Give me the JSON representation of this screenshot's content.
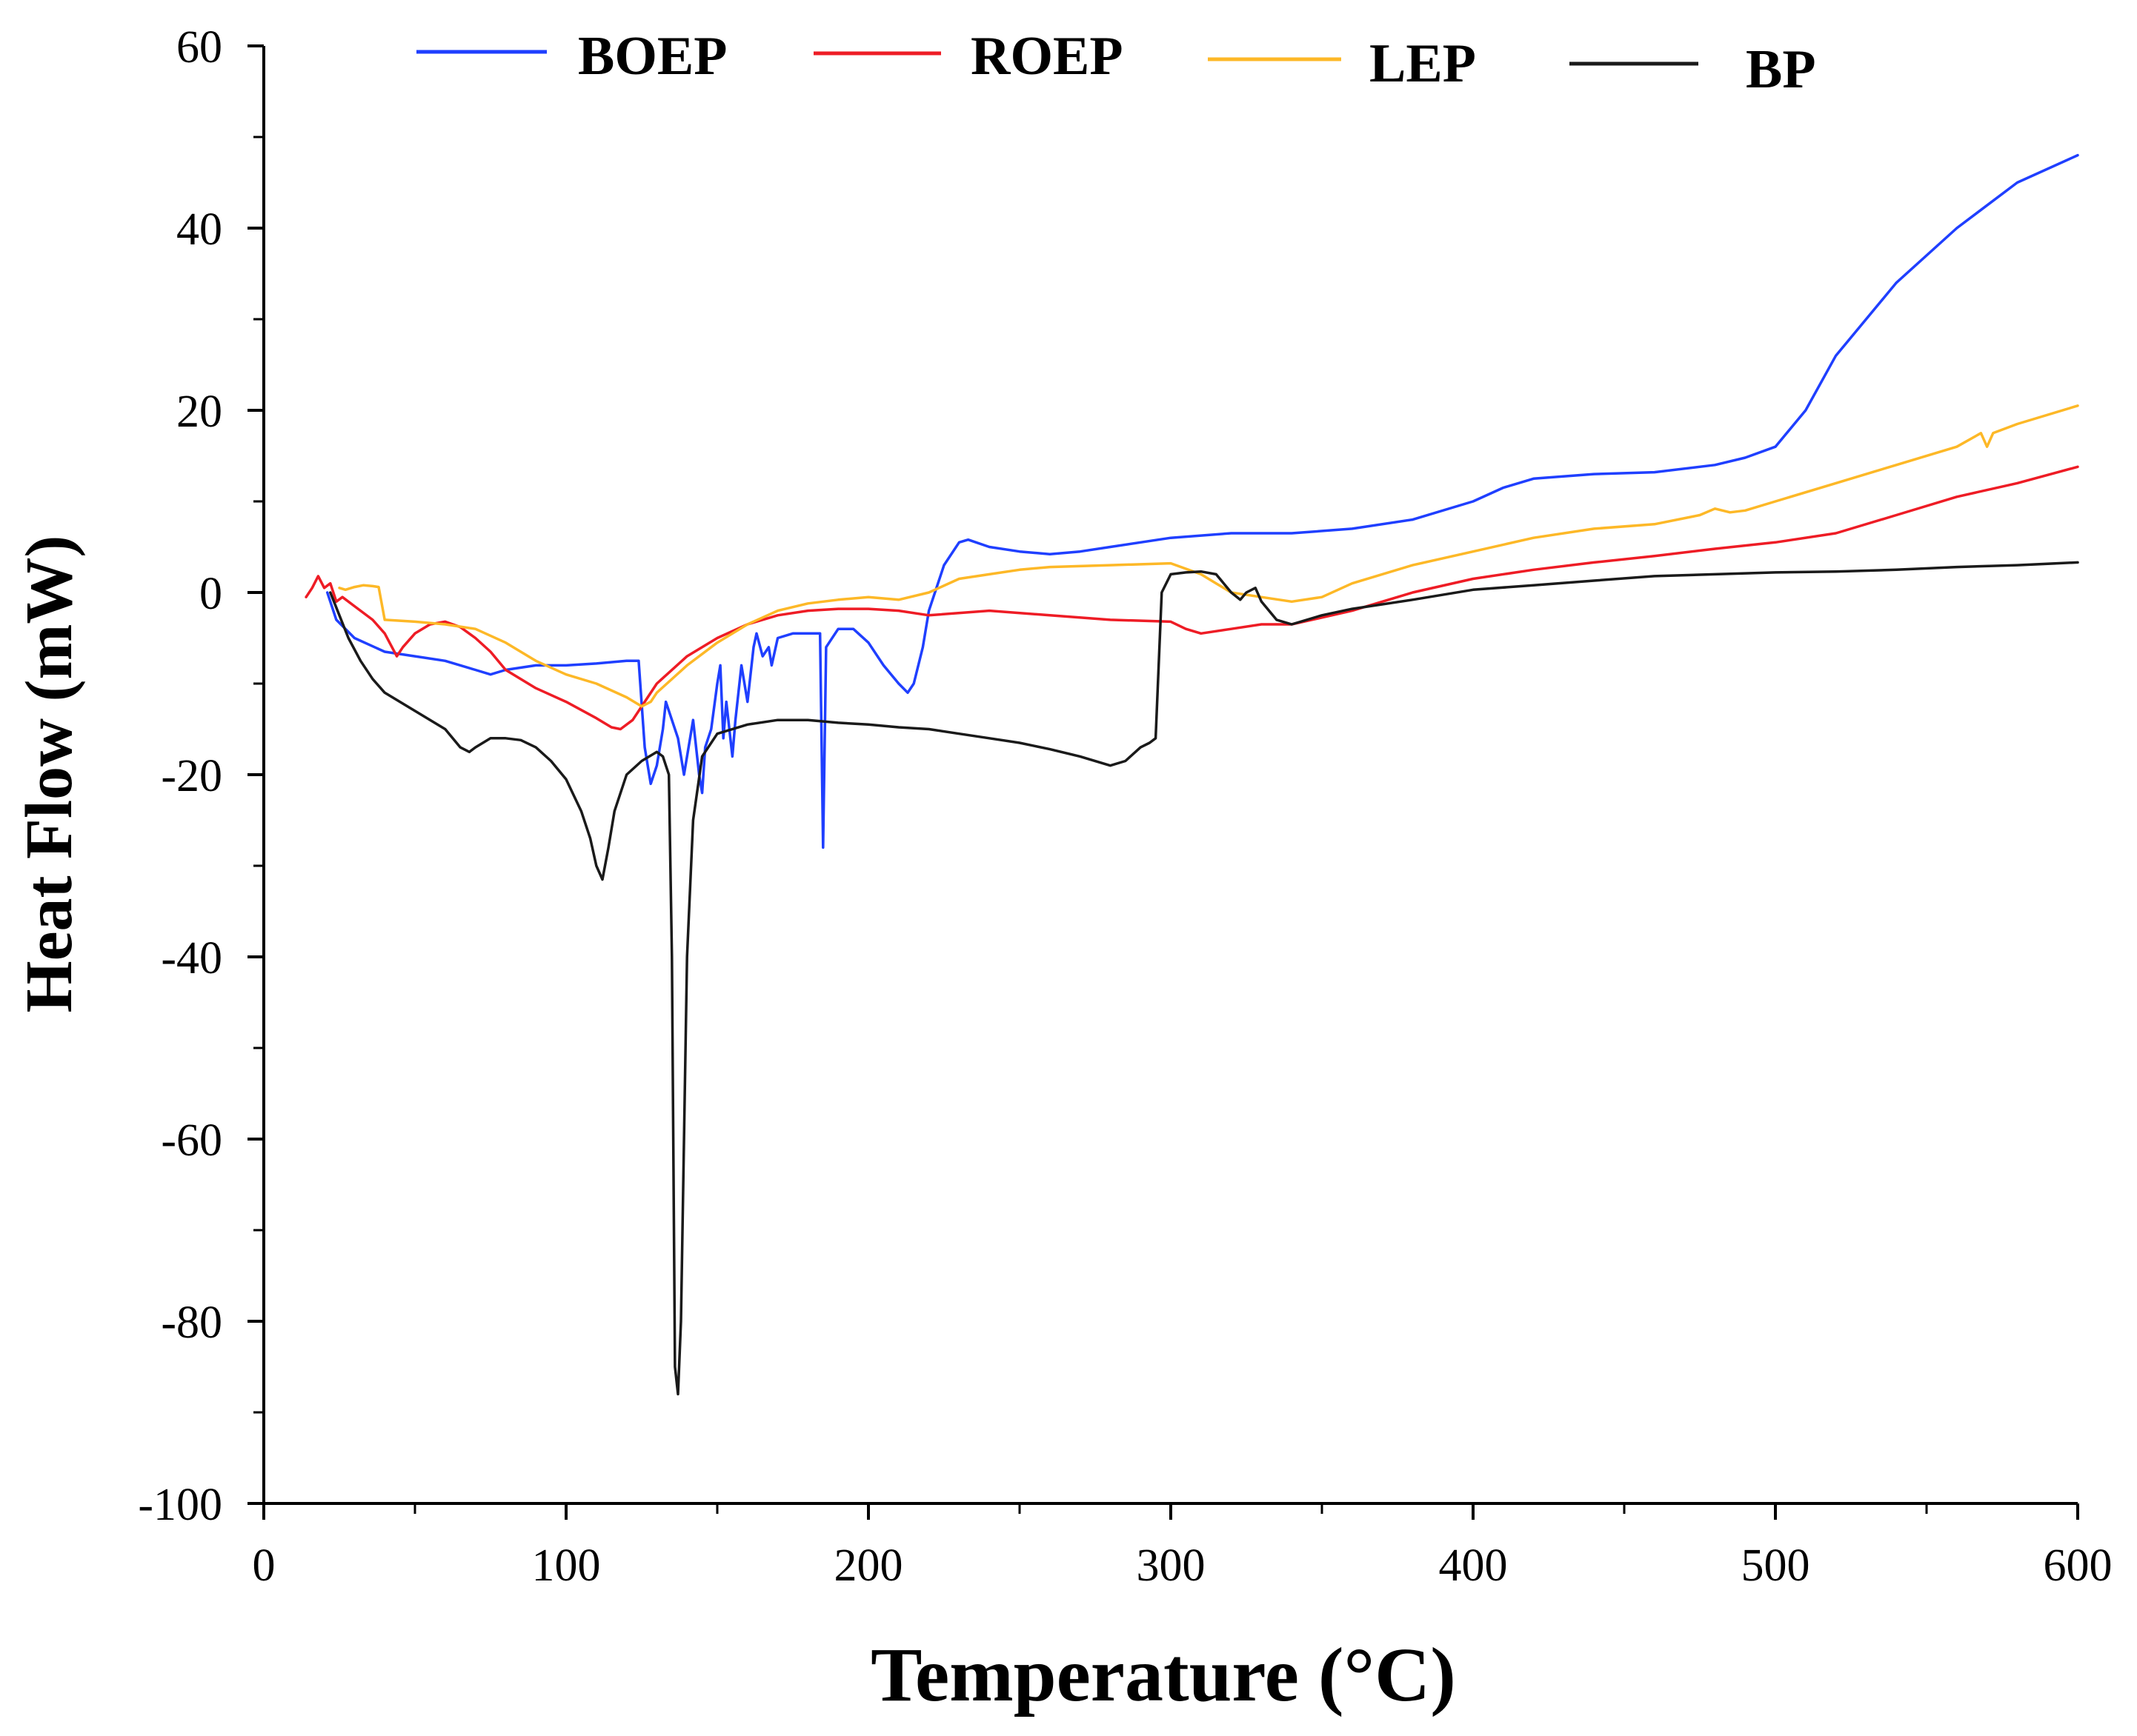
{
  "chart_data": {
    "type": "line",
    "title": "",
    "xlabel": "Temperature (°C)",
    "ylabel": "Heat Flow (mW)",
    "xlim": [
      0,
      600
    ],
    "ylim": [
      -100,
      60
    ],
    "xticks": [
      0,
      100,
      200,
      300,
      400,
      500,
      600
    ],
    "yticks": [
      60,
      40,
      20,
      0,
      -20,
      -40,
      -60,
      -80,
      -100
    ],
    "x_tick_labels": [
      "0",
      "100",
      "200",
      "300",
      "400",
      "500",
      "600"
    ],
    "y_tick_labels": [
      "60",
      "40",
      "20",
      "0",
      "-20",
      "-40",
      "-60",
      "-80",
      "-100"
    ],
    "grid": false,
    "legend_position": "top",
    "series": [
      {
        "name": "BOEP",
        "color": "#1f3fff",
        "x": [
          21,
          24,
          30,
          40,
          50,
          60,
          70,
          75,
          80,
          90,
          100,
          110,
          120,
          124,
          126,
          128,
          130,
          132,
          133,
          135,
          137,
          139,
          140,
          142,
          144,
          145,
          146,
          148,
          150,
          151,
          152,
          153,
          155,
          156,
          158,
          160,
          162,
          163,
          165,
          167,
          168,
          170,
          175,
          180,
          184,
          185,
          186,
          190,
          195,
          200,
          205,
          210,
          213,
          215,
          218,
          220,
          225,
          230,
          233,
          240,
          250,
          260,
          270,
          280,
          300,
          320,
          340,
          360,
          380,
          400,
          410,
          420,
          440,
          460,
          480,
          490,
          500,
          510,
          520,
          540,
          560,
          580,
          600
        ],
        "values": [
          0,
          -3,
          -5,
          -6.5,
          -7,
          -7.5,
          -8.5,
          -9,
          -8.5,
          -8,
          -8,
          -7.8,
          -7.5,
          -7.5,
          -17,
          -21,
          -19,
          -15,
          -12,
          -14,
          -16,
          -20,
          -18,
          -14,
          -20,
          -22,
          -17,
          -15,
          -10,
          -8,
          -16,
          -12,
          -18,
          -14,
          -8,
          -12,
          -6,
          -4.5,
          -7,
          -6,
          -8,
          -5,
          -4.5,
          -4.5,
          -4.5,
          -28,
          -6,
          -4,
          -4,
          -5.5,
          -8,
          -10,
          -11,
          -10,
          -6,
          -2,
          3,
          5.5,
          5.8,
          5,
          4.5,
          4.2,
          4.5,
          5,
          6,
          6.5,
          6.5,
          7,
          8,
          10,
          11.5,
          12.5,
          13,
          13.2,
          14,
          14.8,
          16,
          20,
          26,
          34,
          40,
          45,
          48
        ]
      },
      {
        "name": "ROEP",
        "color": "#ee1c25",
        "x": [
          14,
          16,
          18,
          20,
          22,
          24,
          26,
          30,
          36,
          40,
          44,
          46,
          50,
          55,
          60,
          65,
          70,
          75,
          80,
          90,
          100,
          110,
          115,
          118,
          122,
          126,
          130,
          140,
          150,
          160,
          170,
          180,
          190,
          200,
          210,
          220,
          240,
          260,
          280,
          300,
          305,
          310,
          320,
          330,
          340,
          360,
          380,
          400,
          420,
          440,
          460,
          480,
          500,
          520,
          540,
          560,
          580,
          600
        ],
        "values": [
          -0.5,
          0.5,
          1.8,
          0.5,
          1,
          -1,
          -0.5,
          -1.5,
          -3,
          -4.5,
          -7,
          -6,
          -4.5,
          -3.5,
          -3.2,
          -3.8,
          -5,
          -6.5,
          -8.5,
          -10.5,
          -12,
          -13.8,
          -14.8,
          -15,
          -14,
          -12,
          -10,
          -7,
          -5,
          -3.5,
          -2.5,
          -2,
          -1.8,
          -1.8,
          -2,
          -2.5,
          -2,
          -2.5,
          -3,
          -3.2,
          -4,
          -4.5,
          -4,
          -3.5,
          -3.5,
          -2,
          0,
          1.5,
          2.5,
          3.3,
          4,
          4.8,
          5.5,
          6.5,
          8.5,
          10.5,
          12,
          13.8
        ]
      },
      {
        "name": "LEP",
        "color": "#fdb827",
        "x": [
          25,
          27,
          30,
          33,
          36,
          38,
          40,
          50,
          60,
          70,
          80,
          90,
          100,
          110,
          120,
          125,
          128,
          130,
          140,
          150,
          160,
          170,
          180,
          190,
          200,
          210,
          220,
          230,
          240,
          250,
          260,
          280,
          300,
          310,
          315,
          320,
          330,
          340,
          350,
          360,
          380,
          400,
          420,
          440,
          460,
          475,
          480,
          485,
          490,
          500,
          520,
          540,
          560,
          568,
          570,
          572,
          580,
          600
        ],
        "values": [
          0.5,
          0.3,
          0.6,
          0.8,
          0.7,
          0.6,
          -3,
          -3.2,
          -3.5,
          -4,
          -5.5,
          -7.5,
          -9,
          -10,
          -11.5,
          -12.5,
          -12,
          -11,
          -8,
          -5.5,
          -3.5,
          -2,
          -1.2,
          -0.8,
          -0.5,
          -0.8,
          0,
          1.5,
          2,
          2.5,
          2.8,
          3,
          3.2,
          2,
          1,
          0,
          -0.5,
          -1,
          -0.5,
          1,
          3,
          4.5,
          6,
          7,
          7.5,
          8.5,
          9.2,
          8.8,
          9,
          10,
          12,
          14,
          16,
          17.5,
          16,
          17.5,
          18.5,
          20.5
        ]
      },
      {
        "name": "BP",
        "color": "#1a1a1a",
        "x": [
          22,
          25,
          28,
          32,
          36,
          40,
          50,
          60,
          65,
          68,
          70,
          75,
          80,
          85,
          90,
          95,
          100,
          105,
          108,
          110,
          112,
          114,
          116,
          120,
          125,
          130,
          132,
          134,
          135,
          136,
          137,
          138,
          139,
          140,
          142,
          145,
          150,
          160,
          170,
          180,
          190,
          200,
          210,
          220,
          230,
          240,
          250,
          260,
          270,
          280,
          285,
          290,
          293,
          295,
          297,
          300,
          305,
          310,
          315,
          320,
          323,
          325,
          328,
          330,
          335,
          340,
          350,
          360,
          380,
          400,
          420,
          440,
          460,
          480,
          500,
          520,
          540,
          560,
          580,
          600
        ],
        "values": [
          0,
          -2.5,
          -5,
          -7.5,
          -9.5,
          -11,
          -13,
          -15,
          -17,
          -17.5,
          -17,
          -16,
          -16,
          -16.2,
          -17,
          -18.5,
          -20.5,
          -24,
          -27,
          -30,
          -31.5,
          -28,
          -24,
          -20,
          -18.5,
          -17.5,
          -18,
          -20,
          -40,
          -85,
          -88,
          -80,
          -60,
          -40,
          -25,
          -18,
          -15.5,
          -14.5,
          -14,
          -14,
          -14.3,
          -14.5,
          -14.8,
          -15,
          -15.5,
          -16,
          -16.5,
          -17.2,
          -18,
          -19,
          -18.5,
          -17,
          -16.5,
          -16,
          0,
          2,
          2.2,
          2.3,
          2,
          0,
          -0.8,
          0,
          0.5,
          -1,
          -3,
          -3.5,
          -2.5,
          -1.8,
          -0.8,
          0.3,
          0.8,
          1.3,
          1.8,
          2,
          2.2,
          2.3,
          2.5,
          2.8,
          3,
          3.3
        ]
      }
    ]
  }
}
